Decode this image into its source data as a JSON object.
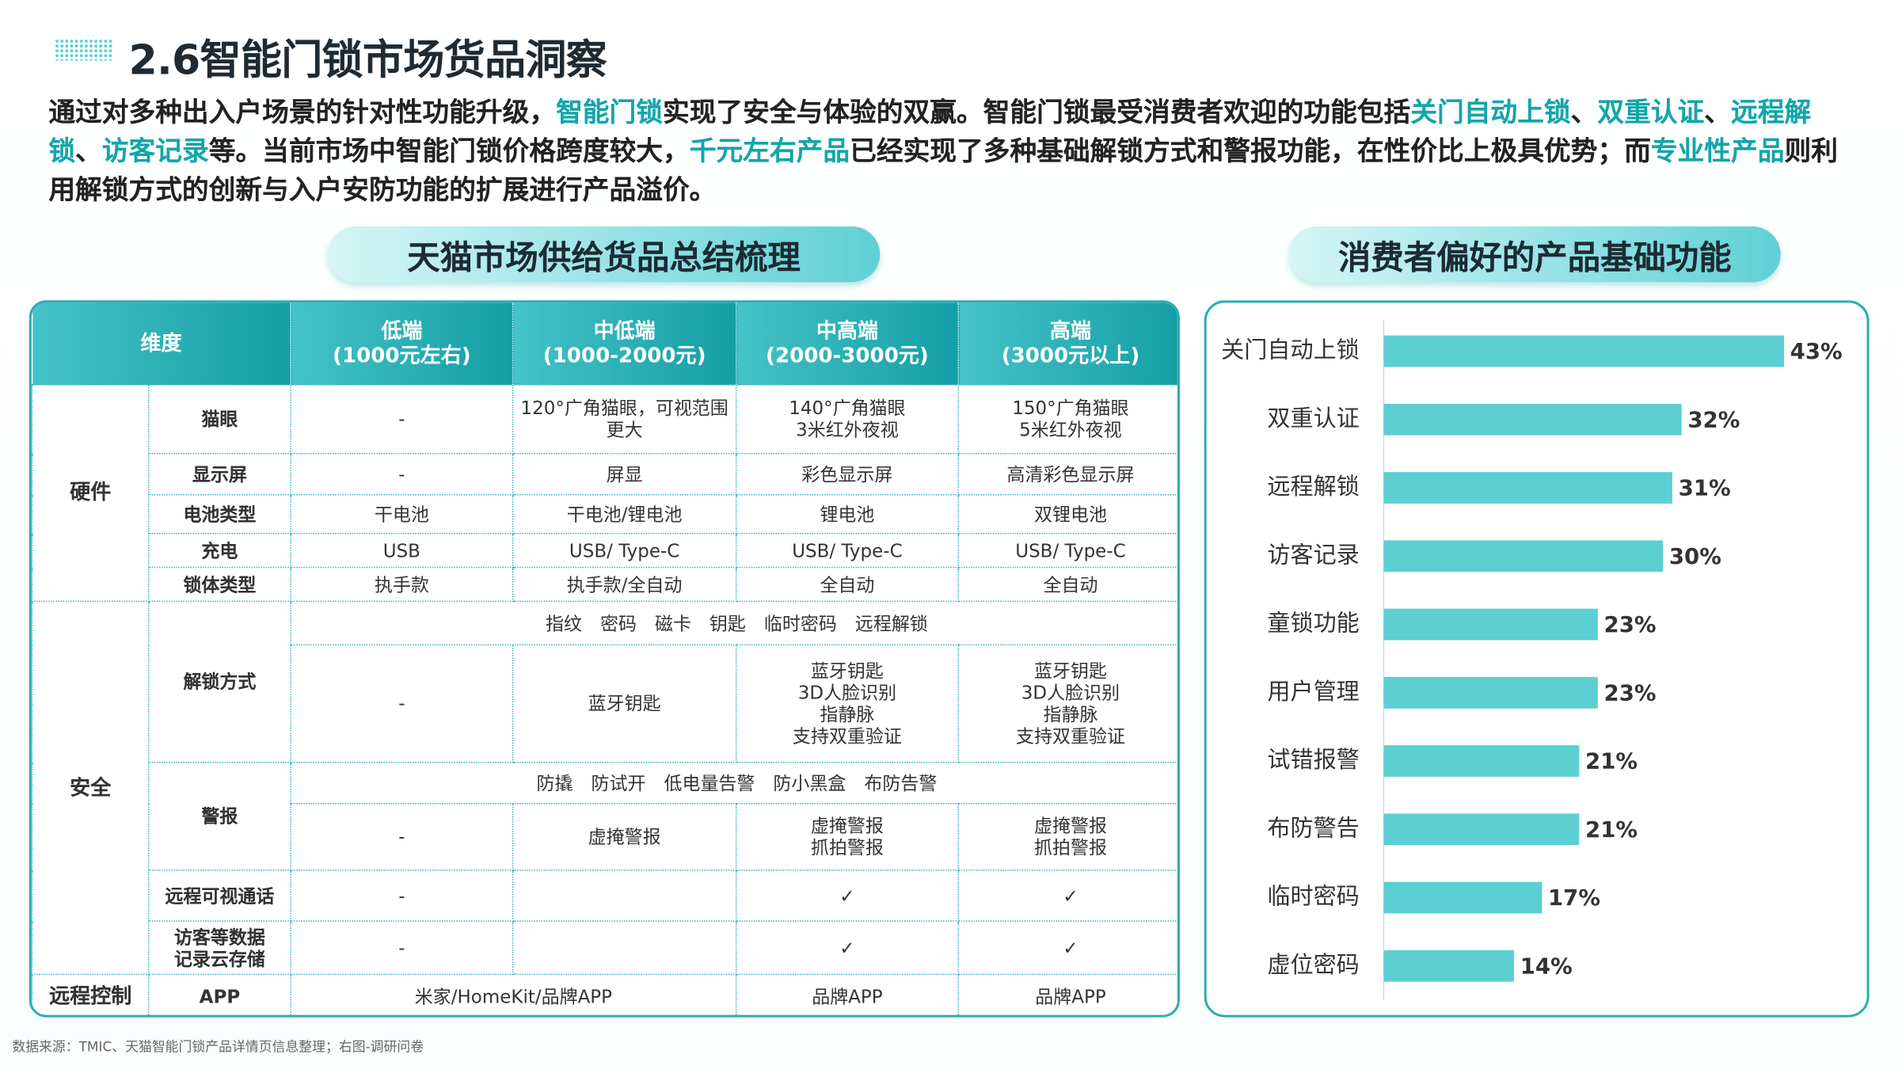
{
  "header": {
    "title": "2.6智能门锁市场货品洞察"
  },
  "intro": [
    {
      "text": "通过对多种出入户场景的针对性功能升级，",
      "highlight": false
    },
    {
      "text": "智能门锁",
      "highlight": true
    },
    {
      "text": "实现了安全与体验的双赢。智能门锁最受消费者欢迎的功能包括",
      "highlight": false
    },
    {
      "text": "关门自动上锁",
      "highlight": true
    },
    {
      "text": "、",
      "highlight": false
    },
    {
      "text": "双重认证",
      "highlight": true
    },
    {
      "text": "、",
      "highlight": false
    },
    {
      "text": "远程解锁",
      "highlight": true
    },
    {
      "text": "、",
      "highlight": false
    },
    {
      "text": "访客记录",
      "highlight": true
    },
    {
      "text": "等。当前市场中智能门锁价格跨度较大，",
      "highlight": false
    },
    {
      "text": "千元左右产品",
      "highlight": true
    },
    {
      "text": "已经实现了多种基础解锁方式和警报功能，在性价比上极具优势；而",
      "highlight": false
    },
    {
      "text": "专业性产品",
      "highlight": true
    },
    {
      "text": "则利用解锁方式的创新与入户安防功能的扩展进行产品溢价。",
      "highlight": false
    }
  ],
  "table": {
    "caption": "天猫市场供给货品总结梳理",
    "header": {
      "dimension": "维度",
      "tiers": [
        {
          "name": "低端",
          "price": "(1000元左右)"
        },
        {
          "name": "中低端",
          "price": "(1000-2000元)"
        },
        {
          "name": "中高端",
          "price": "(2000-3000元)"
        },
        {
          "name": "高端",
          "price": "(3000元以上)"
        }
      ]
    },
    "groups": [
      {
        "name": "硬件",
        "rows": [
          {
            "label": "猫眼",
            "cells": [
              "-",
              "120°广角猫眼，可视范围更大",
              "140°广角猫眼\n3米红外夜视",
              "150°广角猫眼\n5米红外夜视"
            ]
          },
          {
            "label": "显示屏",
            "cells": [
              "-",
              "屏显",
              "彩色显示屏",
              "高清彩色显示屏"
            ]
          },
          {
            "label": "电池类型",
            "cells": [
              "干电池",
              "干电池/锂电池",
              "锂电池",
              "双锂电池"
            ]
          },
          {
            "label": "充电",
            "cells": [
              "USB",
              "USB/ Type-C",
              "USB/ Type-C",
              "USB/ Type-C"
            ]
          },
          {
            "label": "锁体类型",
            "cells": [
              "执手款",
              "执手款/全自动",
              "全自动",
              "全自动"
            ]
          }
        ]
      },
      {
        "name": "安全",
        "rows": [
          {
            "label": "解锁方式",
            "common": "指纹　密码　磁卡　钥匙　临时密码　远程解锁",
            "cells": [
              "-",
              "蓝牙钥匙",
              "蓝牙钥匙\n3D人脸识别\n指静脉\n支持双重验证",
              "蓝牙钥匙\n3D人脸识别\n指静脉\n支持双重验证"
            ]
          },
          {
            "label": "警报",
            "common": "防撬　防试开　低电量告警　防小黑盒　布防告警",
            "cells": [
              "-",
              "虚掩警报",
              "虚掩警报\n抓拍警报",
              "虚掩警报\n抓拍警报"
            ]
          },
          {
            "label": "远程可视通话",
            "cells": [
              "-",
              null,
              "✓",
              "✓"
            ]
          },
          {
            "label": "访客等数据\n记录云存储",
            "cells": [
              "-",
              null,
              "✓",
              "✓"
            ]
          }
        ]
      },
      {
        "name": "远程控制",
        "rows": [
          {
            "label": "APP",
            "cells": [
              "米家/HomeKit/品牌APP",
              "品牌APP",
              "品牌APP"
            ]
          }
        ]
      }
    ]
  },
  "chart_data": {
    "type": "bar",
    "orientation": "horizontal",
    "title": "消费者偏好的产品基础功能",
    "categories": [
      "关门自动上锁",
      "双重认证",
      "远程解锁",
      "访客记录",
      "童锁功能",
      "用户管理",
      "试错报警",
      "布防警告",
      "临时密码",
      "虚位密码"
    ],
    "values": [
      43,
      32,
      31,
      30,
      23,
      23,
      21,
      21,
      17,
      14
    ],
    "value_labels": [
      "43%",
      "32%",
      "31%",
      "30%",
      "23%",
      "23%",
      "21%",
      "21%",
      "17%",
      "14%"
    ],
    "color": "#5ccfd2"
  },
  "source": "数据来源：TMIC、天猫智能门锁产品详情页信息整理；右图-调研问卷"
}
